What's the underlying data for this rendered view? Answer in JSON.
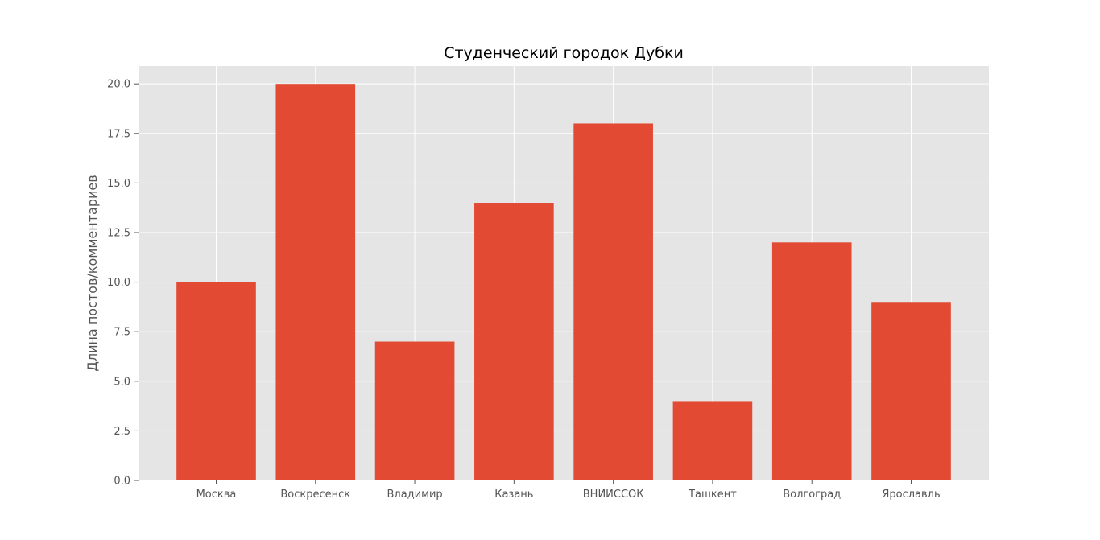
{
  "chart_data": {
    "type": "bar",
    "title": "Студенческий городок Дубки",
    "xlabel": "",
    "ylabel": "Длина постов/комментариев",
    "categories": [
      "Москва",
      "Воскресенск",
      "Владимир",
      "Казань",
      "ВНИИССОК",
      "Ташкент",
      "Волгоград",
      "Ярославль"
    ],
    "values": [
      10,
      20,
      7,
      14,
      18,
      4,
      12,
      9
    ],
    "ylim": [
      0,
      20.9
    ],
    "yticks": [
      "0.0",
      "2.5",
      "5.0",
      "7.5",
      "10.0",
      "12.5",
      "15.0",
      "17.5",
      "20.0"
    ],
    "grid": true,
    "legend": "none",
    "colors": {
      "bar": "#E24A33",
      "plot_background": "#E5E5E5",
      "grid": "#FFFFFF",
      "tick_text": "#555555",
      "title_text": "#000000"
    }
  }
}
